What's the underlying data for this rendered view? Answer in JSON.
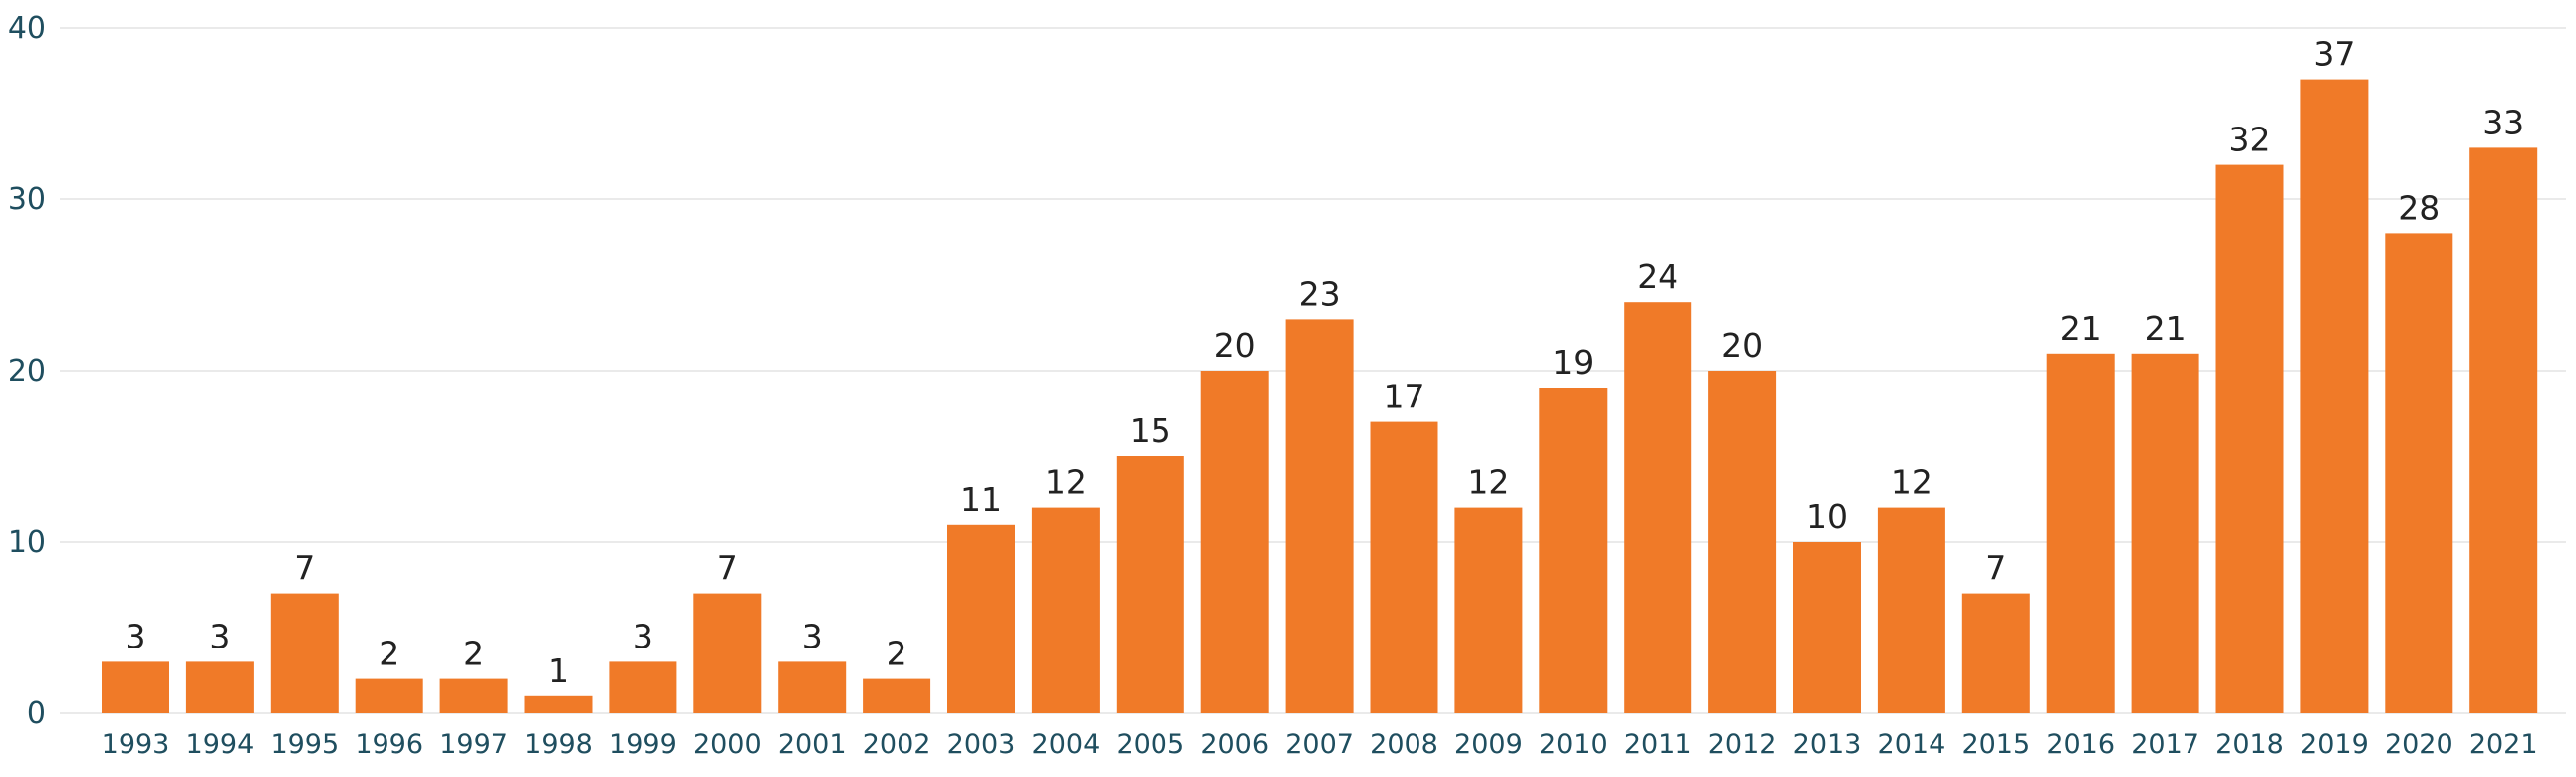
{
  "chart_data": {
    "type": "bar",
    "title": "",
    "xlabel": "",
    "ylabel": "",
    "categories": [
      "1993",
      "1994",
      "1995",
      "1996",
      "1997",
      "1998",
      "1999",
      "2000",
      "2001",
      "2002",
      "2003",
      "2004",
      "2005",
      "2006",
      "2007",
      "2008",
      "2009",
      "2010",
      "2011",
      "2012",
      "2013",
      "2014",
      "2015",
      "2016",
      "2017",
      "2018",
      "2019",
      "2020",
      "2021"
    ],
    "values": [
      3,
      3,
      7,
      2,
      2,
      1,
      3,
      7,
      3,
      2,
      11,
      12,
      15,
      20,
      23,
      17,
      12,
      19,
      24,
      20,
      10,
      12,
      7,
      21,
      21,
      32,
      37,
      28,
      33
    ],
    "ylim": [
      0,
      40
    ],
    "yticks": [
      0,
      10,
      20,
      30,
      40
    ],
    "grid": true,
    "data_labels": true,
    "legend": "none",
    "bar_color": "#f07a28",
    "grid_color": "#e3e3e3",
    "tick_color": "#1f4e5f",
    "label_color": "#222222"
  }
}
